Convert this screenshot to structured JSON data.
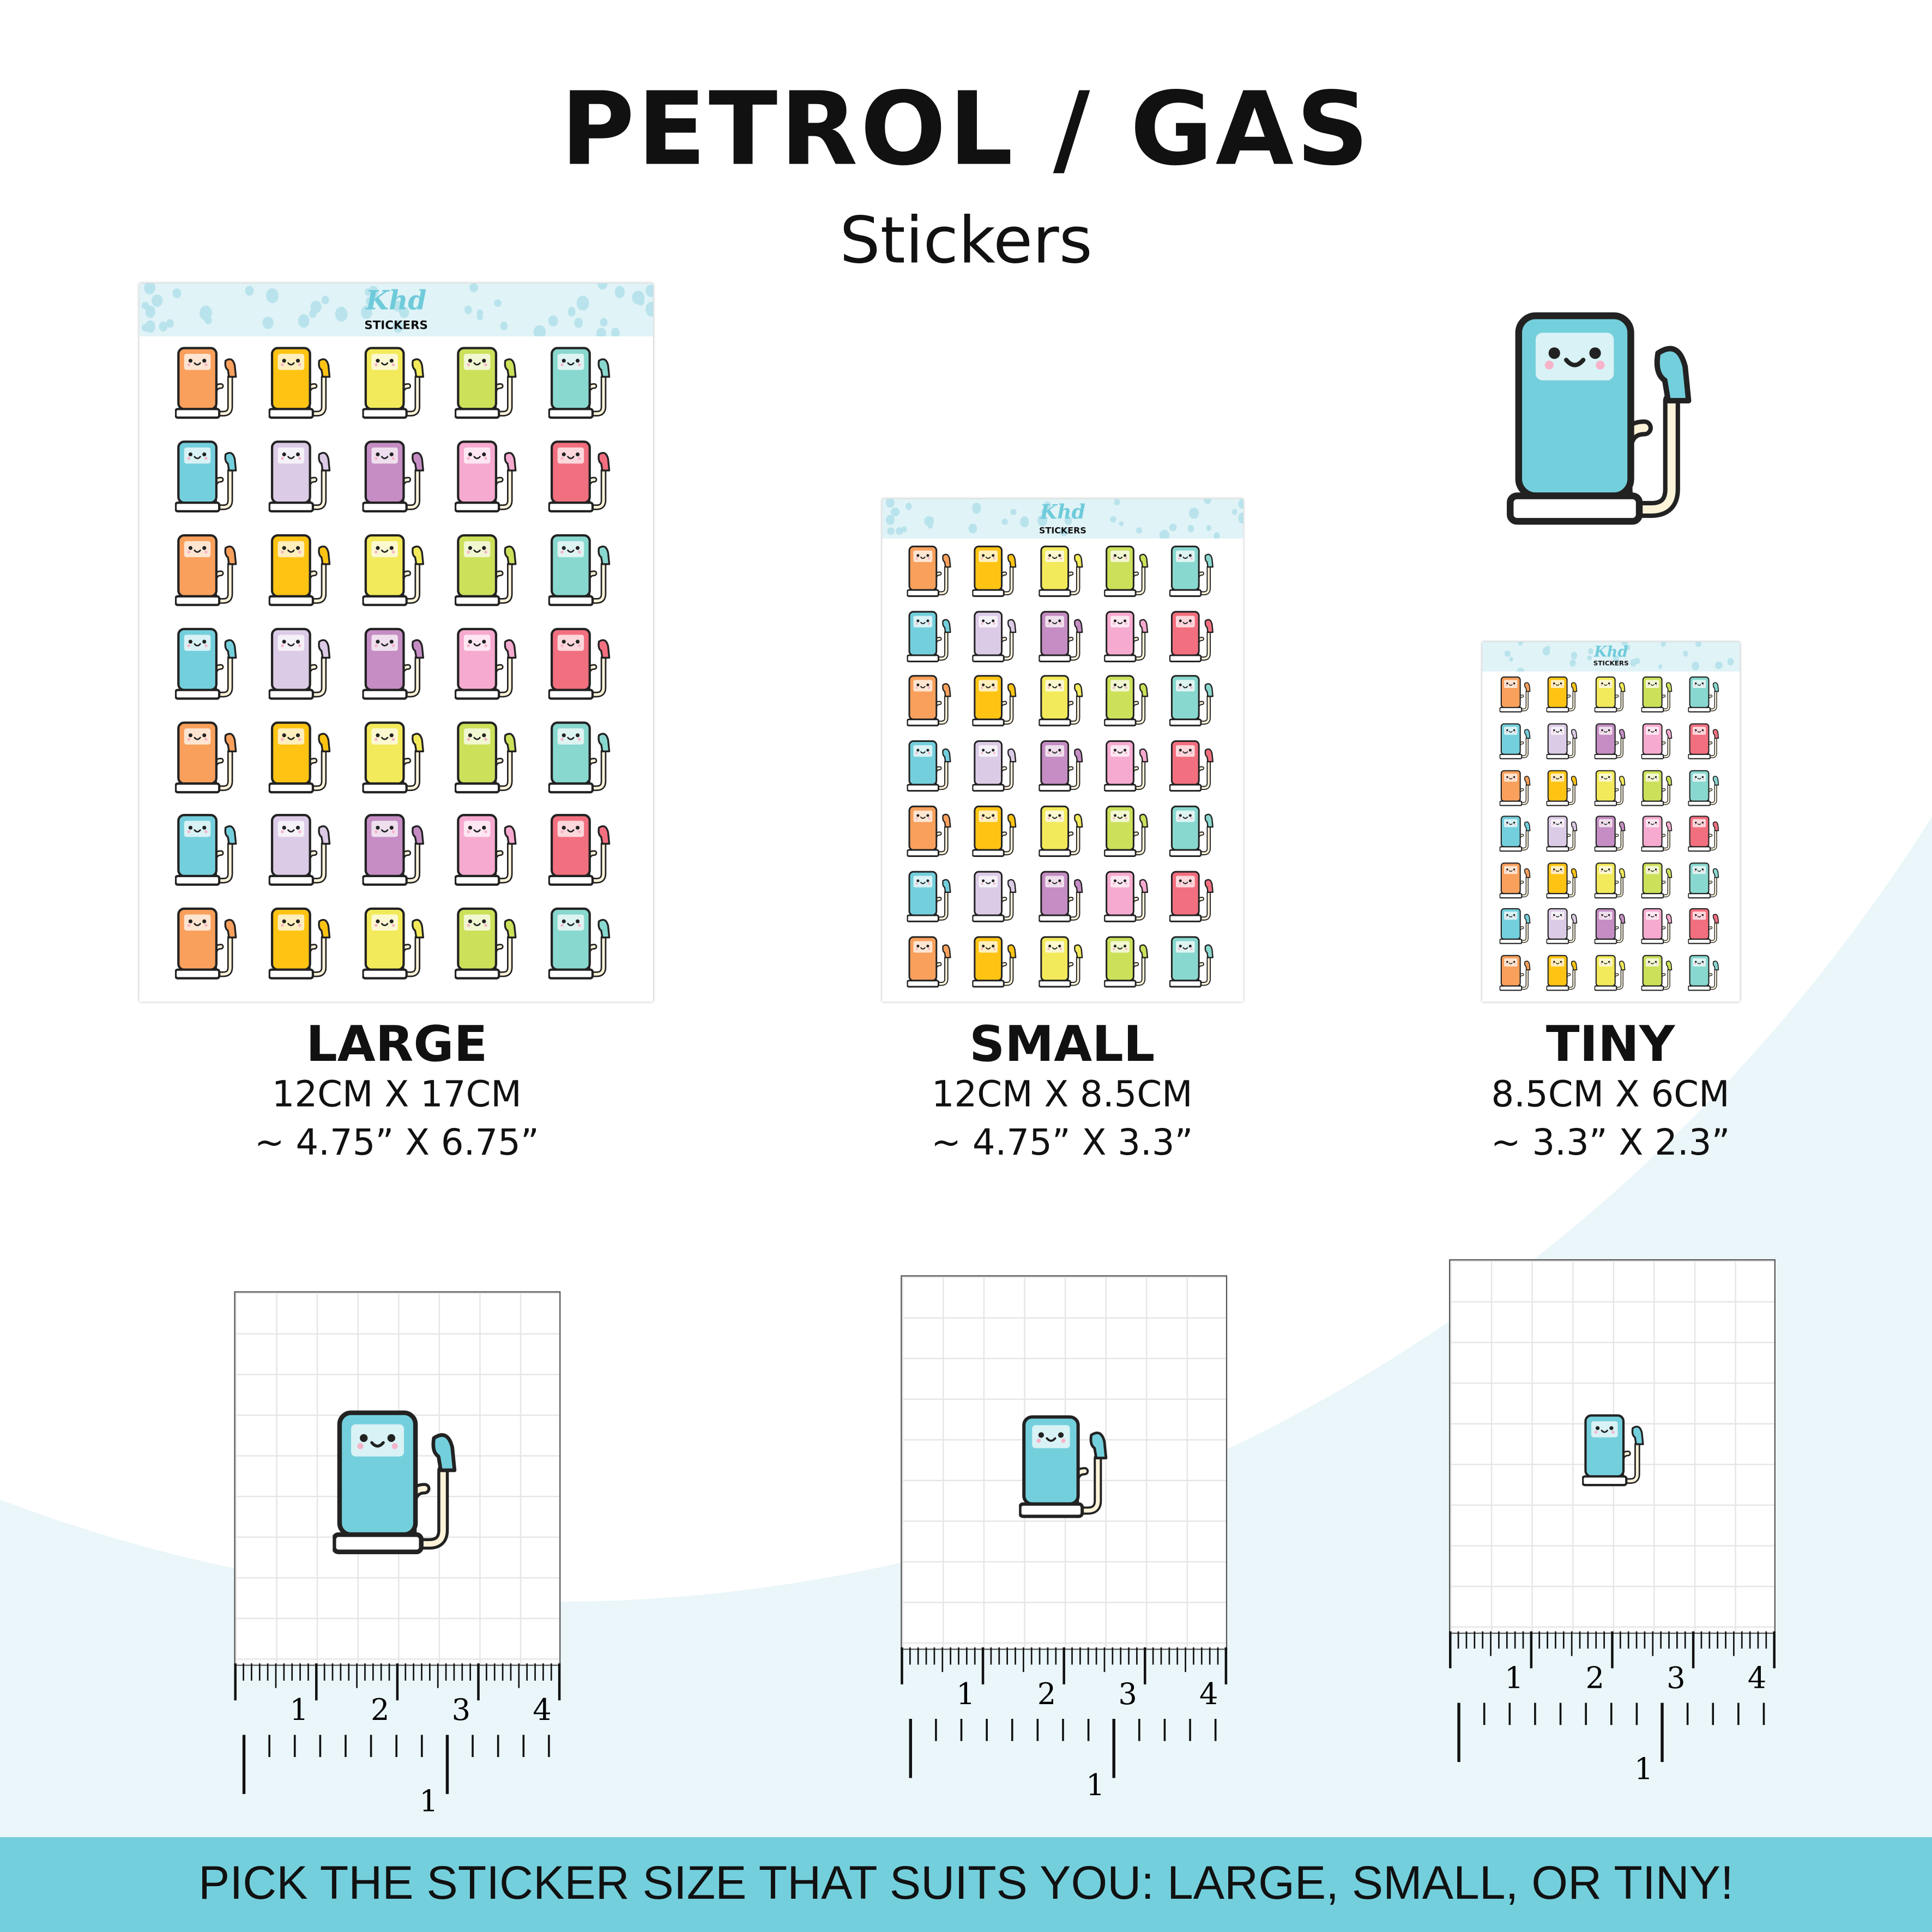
{
  "title": "PETROL / GAS",
  "subtitle": "Stickers",
  "brand": {
    "script": "Khd",
    "word": "STICKERS"
  },
  "palette": {
    "row_a": [
      "#f9a05c",
      "#ffc413",
      "#f2ea5a",
      "#cde05a",
      "#88d8cf"
    ],
    "row_b": [
      "#74cfdc",
      "#dccbe6",
      "#c58dc3",
      "#f7aacf",
      "#f26f7f"
    ],
    "accent": "#74cfdc",
    "outline": "#222222"
  },
  "sizes": [
    {
      "name": "LARGE",
      "metric": "12CM X 17CM",
      "imperial": "~ 4.75” X 6.75”"
    },
    {
      "name": "SMALL",
      "metric": "12CM X 8.5CM",
      "imperial": "~ 4.75” X 3.3”"
    },
    {
      "name": "TINY",
      "metric": "8.5CM X 6CM",
      "imperial": "~ 3.3” X 2.3”"
    }
  ],
  "ruler": {
    "cm_labels": [
      "1",
      "2",
      "3",
      "4"
    ],
    "inch_label": "1"
  },
  "footer": "PICK THE STICKER SIZE THAT SUITS YOU: LARGE, SMALL, OR TINY!"
}
